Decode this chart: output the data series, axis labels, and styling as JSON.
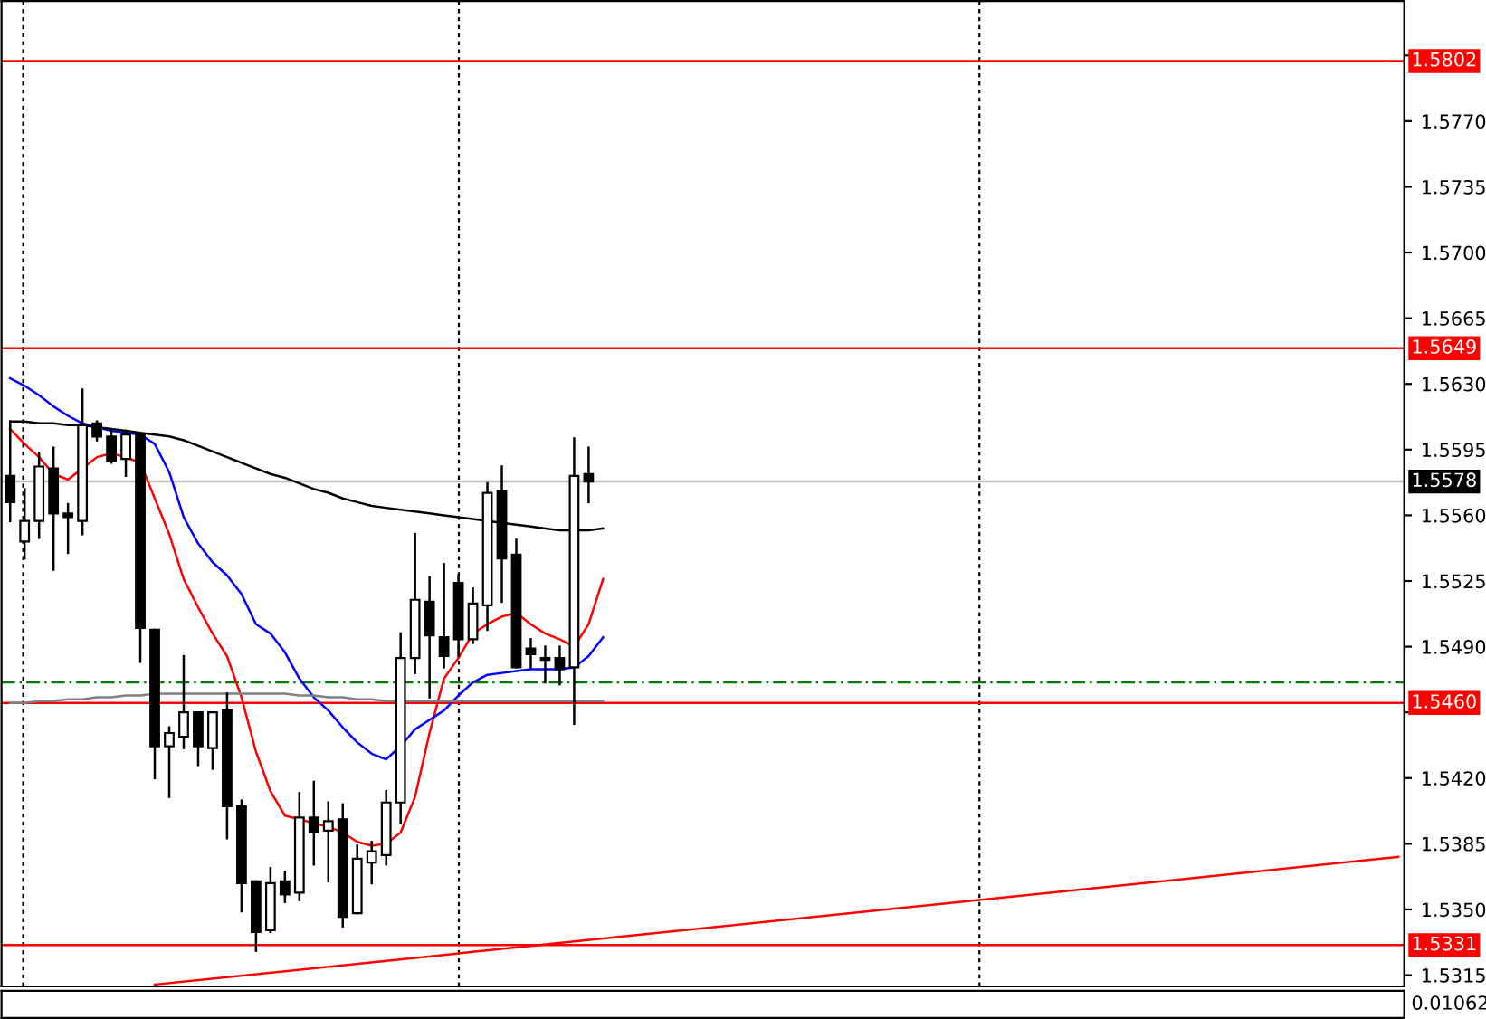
{
  "chart_data": [
    {
      "type": "candlestick",
      "categories": [
        null,
        null,
        null,
        null,
        null,
        null,
        null,
        null,
        null,
        null,
        null,
        null,
        null,
        null,
        null,
        null,
        null,
        null,
        null,
        null,
        null,
        null,
        null,
        null,
        null,
        null,
        null,
        null,
        null,
        null,
        null,
        null,
        null,
        null,
        null,
        null,
        null,
        null,
        null,
        null,
        null,
        null,
        null,
        null,
        null,
        null,
        null,
        null,
        null,
        null,
        null,
        null,
        null,
        null,
        null,
        null,
        null,
        null,
        null,
        null,
        null,
        null,
        null,
        null,
        null,
        null,
        null,
        null,
        null,
        null,
        null,
        null,
        null,
        null,
        null,
        null,
        null,
        null,
        null,
        null,
        null,
        null,
        null,
        null,
        null,
        null,
        null,
        null,
        null,
        null,
        null,
        null,
        null,
        null,
        null,
        null,
        null
      ],
      "ohlc": [
        [
          1.5581,
          1.561,
          1.5557,
          1.5567
        ],
        [
          1.5546,
          1.5574,
          1.5537,
          1.5557
        ],
        [
          1.5557,
          1.5593,
          1.5548,
          1.5586
        ],
        [
          1.5585,
          1.5596,
          1.5531,
          1.5561
        ],
        [
          1.5561,
          1.5566,
          1.554,
          1.5559
        ],
        [
          1.5557,
          1.5627,
          1.555,
          1.5608
        ],
        [
          1.5609,
          1.561,
          1.56,
          1.5602
        ],
        [
          1.5602,
          1.5605,
          1.5588,
          1.5589
        ],
        [
          1.559,
          1.5605,
          1.5581,
          1.5603
        ],
        [
          1.5603,
          1.5604,
          1.5482,
          1.55
        ],
        [
          1.5499,
          1.5499,
          1.542,
          1.5437
        ],
        [
          1.5437,
          1.5447,
          1.541,
          1.5444
        ],
        [
          1.5442,
          1.5485,
          1.5436,
          1.5455
        ],
        [
          1.5455,
          1.5455,
          1.5427,
          1.5437
        ],
        [
          1.5436,
          1.5455,
          1.5425,
          1.5455
        ],
        [
          1.5456,
          1.5465,
          1.5388,
          1.5405
        ],
        [
          1.5405,
          1.5408,
          1.5349,
          1.5364
        ],
        [
          1.5365,
          1.5365,
          1.5328,
          1.5338
        ],
        [
          1.5339,
          1.5372,
          1.5338,
          1.5364
        ],
        [
          1.5365,
          1.537,
          1.5354,
          1.5358
        ],
        [
          1.5359,
          1.5412,
          1.5355,
          1.5399
        ],
        [
          1.5399,
          1.5418,
          1.5374,
          1.5391
        ],
        [
          1.5392,
          1.5407,
          1.5365,
          1.5397
        ],
        [
          1.5398,
          1.5406,
          1.5341,
          1.5346
        ],
        [
          1.5348,
          1.5384,
          1.5348,
          1.5377
        ],
        [
          1.5375,
          1.5386,
          1.5364,
          1.5381
        ],
        [
          1.5379,
          1.5413,
          1.5374,
          1.5407
        ],
        [
          1.5407,
          1.5497,
          1.5396,
          1.5484
        ],
        [
          1.5484,
          1.555,
          1.5476,
          1.5515
        ],
        [
          1.5514,
          1.5527,
          1.5463,
          1.5496
        ],
        [
          1.5495,
          1.5534,
          1.5479,
          1.5485
        ],
        [
          1.5524,
          1.5528,
          1.5485,
          1.5494
        ],
        [
          1.5494,
          1.5521,
          1.5492,
          1.5513
        ],
        [
          1.5512,
          1.5577,
          1.5499,
          1.5572
        ],
        [
          1.5573,
          1.5586,
          1.5514,
          1.5537
        ],
        [
          1.5539,
          1.5547,
          1.5479,
          1.5479
        ],
        [
          1.5489,
          1.5494,
          1.5479,
          1.5486
        ],
        [
          1.5484,
          1.549,
          1.5471,
          1.5483
        ],
        [
          1.5484,
          1.549,
          1.547,
          1.5478
        ],
        [
          1.5479,
          1.5601,
          1.5449,
          1.5581
        ],
        [
          1.5582,
          1.5596,
          1.5567,
          1.5578
        ],
        null,
        null,
        null,
        null,
        null,
        null,
        null,
        null,
        null,
        null,
        null,
        null,
        null,
        null,
        null,
        null,
        null,
        null,
        null,
        null,
        null,
        null,
        null,
        null,
        null,
        null,
        null,
        null,
        null,
        null,
        null,
        null,
        null,
        null,
        null,
        null,
        null,
        null,
        null,
        null,
        null,
        null,
        null,
        null,
        null,
        null,
        null,
        null,
        null,
        null,
        null,
        null,
        null,
        null,
        null,
        null
      ],
      "series": [
        {
          "type": "line",
          "color": "#ff0000",
          "values": [
            1.5606,
            1.5598,
            1.5591,
            1.5582,
            1.5579,
            1.5585,
            1.5591,
            1.5593,
            1.5591,
            1.5588,
            1.5569,
            1.555,
            1.5526,
            1.5511,
            1.5497,
            1.5485,
            1.5463,
            1.5434,
            1.5413,
            1.54,
            1.5398,
            1.5396,
            1.5394,
            1.5391,
            1.5386,
            1.5384,
            1.5385,
            1.5391,
            1.541,
            1.5444,
            1.5473,
            1.5484,
            1.5497,
            1.5502,
            1.5506,
            1.5508,
            1.5502,
            1.5497,
            1.5494,
            1.549,
            1.5502,
            1.5526,
            null,
            null,
            null,
            null,
            null,
            null,
            null,
            null,
            null,
            null,
            null,
            null,
            null,
            null,
            null,
            null,
            null,
            null,
            null,
            null,
            null,
            null,
            null,
            null,
            null,
            null,
            null,
            null,
            null,
            null,
            null,
            null,
            null,
            null,
            null,
            null,
            null,
            null,
            null,
            null,
            null,
            null,
            null,
            null,
            null,
            null,
            null,
            null,
            null,
            null,
            null,
            null,
            null,
            null,
            null
          ]
        },
        {
          "type": "line",
          "color": "#0000ff",
          "values": [
            1.5633,
            1.5629,
            1.5624,
            1.5618,
            1.5613,
            1.5609,
            1.5607,
            1.5605,
            1.5604,
            1.5603,
            1.5598,
            1.5583,
            1.5559,
            1.5545,
            1.5535,
            1.5528,
            1.5518,
            1.5502,
            1.5497,
            1.5487,
            1.5473,
            1.5463,
            1.5456,
            1.5447,
            1.5439,
            1.5433,
            1.543,
            1.5437,
            1.5446,
            1.5451,
            1.5456,
            1.5464,
            1.5471,
            1.5475,
            1.5476,
            1.5477,
            1.5478,
            1.5478,
            1.5478,
            1.5479,
            1.5485,
            1.5495,
            null,
            null,
            null,
            null,
            null,
            null,
            null,
            null,
            null,
            null,
            null,
            null,
            null,
            null,
            null,
            null,
            null,
            null,
            null,
            null,
            null,
            null,
            null,
            null,
            null,
            null,
            null,
            null,
            null,
            null,
            null,
            null,
            null,
            null,
            null,
            null,
            null,
            null,
            null,
            null,
            null,
            null,
            null,
            null,
            null,
            null,
            null,
            null,
            null,
            null,
            null,
            null,
            null,
            null,
            null
          ]
        },
        {
          "type": "line",
          "color": "#000000",
          "values": [
            1.561,
            1.561,
            1.5609,
            1.5609,
            1.5608,
            1.5608,
            1.5607,
            1.5606,
            1.5605,
            1.5604,
            1.5603,
            1.5602,
            1.56,
            1.5597,
            1.5594,
            1.5591,
            1.5588,
            1.5585,
            1.5582,
            1.558,
            1.5577,
            1.5574,
            1.5572,
            1.5569,
            1.5567,
            1.5565,
            1.5564,
            1.5563,
            1.5562,
            1.5561,
            1.556,
            1.5559,
            1.5558,
            1.5557,
            1.5556,
            1.5555,
            1.5554,
            1.5553,
            1.5552,
            1.5552,
            1.5552,
            1.5553,
            null,
            null,
            null,
            null,
            null,
            null,
            null,
            null,
            null,
            null,
            null,
            null,
            null,
            null,
            null,
            null,
            null,
            null,
            null,
            null,
            null,
            null,
            null,
            null,
            null,
            null,
            null,
            null,
            null,
            null,
            null,
            null,
            null,
            null,
            null,
            null,
            null,
            null,
            null,
            null,
            null,
            null,
            null,
            null,
            null,
            null,
            null,
            null,
            null,
            null,
            null,
            null,
            null,
            null,
            null
          ]
        },
        {
          "type": "line",
          "color": "#808080",
          "values": [
            1.546,
            1.546,
            1.5461,
            1.5461,
            1.5462,
            1.5462,
            1.5463,
            1.5463,
            1.5464,
            1.5464,
            1.5465,
            1.5465,
            1.5465,
            1.5465,
            1.5465,
            1.5465,
            1.5465,
            1.5465,
            1.5465,
            1.5465,
            1.5464,
            1.5464,
            1.5463,
            1.5463,
            1.5462,
            1.5462,
            1.5461,
            1.5461,
            1.5461,
            1.5461,
            1.5461,
            1.5461,
            1.5461,
            1.5461,
            1.5461,
            1.5461,
            1.5461,
            1.5461,
            1.5461,
            1.5461,
            1.5461,
            1.5461,
            null,
            null,
            null,
            null,
            null,
            null,
            null,
            null,
            null,
            null,
            null,
            null,
            null,
            null,
            null,
            null,
            null,
            null,
            null,
            null,
            null,
            null,
            null,
            null,
            null,
            null,
            null,
            null,
            null,
            null,
            null,
            null,
            null,
            null,
            null,
            null,
            null,
            null,
            null,
            null,
            null,
            null,
            null,
            null,
            null,
            null,
            null,
            null,
            null,
            null,
            null,
            null,
            null,
            null,
            null
          ]
        },
        {
          "type": "line",
          "color": "#ff0000",
          "values": [
            null,
            null,
            null,
            null,
            null,
            null,
            null,
            null,
            null,
            null,
            1.531,
            null,
            null,
            null,
            null,
            null,
            null,
            null,
            null,
            null,
            null,
            null,
            null,
            null,
            null,
            null,
            null,
            null,
            null,
            null,
            null,
            null,
            null,
            null,
            null,
            null,
            null,
            null,
            null,
            null,
            null,
            null,
            null,
            null,
            null,
            null,
            null,
            null,
            null,
            null,
            null,
            null,
            null,
            null,
            null,
            null,
            null,
            null,
            null,
            null,
            null,
            null,
            null,
            null,
            null,
            null,
            null,
            null,
            null,
            null,
            null,
            null,
            null,
            null,
            null,
            null,
            null,
            null,
            null,
            null,
            null,
            null,
            null,
            null,
            null,
            null,
            null,
            null,
            null,
            null,
            null,
            null,
            null,
            null,
            null,
            null,
            1.5378
          ]
        }
      ],
      "ylim": [
        1.5309,
        1.5834
      ],
      "yticks": [
        {
          "value": 1.5805,
          "label": null
        },
        {
          "value": 1.577,
          "label": "1.5770"
        },
        1.5735,
        {
          "value": 1.57,
          "label": "1.5700"
        },
        1.5665,
        {
          "value": 1.563,
          "label": "1.5630"
        },
        1.5595,
        {
          "value": 1.556,
          "label": "1.5560"
        },
        1.5525,
        {
          "value": 1.549,
          "label": "1.5490"
        },
        {
          "value": 1.5455,
          "label": null
        },
        {
          "value": 1.542,
          "label": "1.5420"
        },
        1.5385,
        {
          "value": 1.535,
          "label": "1.5350"
        },
        1.5315
      ],
      "ref_lines": [
        {
          "axis": "y",
          "value": 1.5802,
          "label": "1.5802",
          "color": "#ff0000"
        },
        {
          "axis": "y",
          "value": 1.5649,
          "label": "1.5649",
          "color": "#ff0000"
        },
        {
          "axis": "y",
          "value": 1.5578,
          "label": "1.5578",
          "color": "#c0c0c0"
        },
        {
          "axis": "y",
          "value": 1.5471,
          "color": "#008000",
          "line_style": "dashed"
        },
        {
          "axis": "y",
          "value": 1.546,
          "label": "1.5460",
          "color": "#ff0000"
        },
        {
          "axis": "y",
          "value": 1.5331,
          "label": "1.5331",
          "color": "#ff0000"
        }
      ],
      "tick_labels": "y",
      "grid": false,
      "legend": false
    },
    {
      "type": "other",
      "annotations": [
        "0.01062"
      ]
    }
  ]
}
